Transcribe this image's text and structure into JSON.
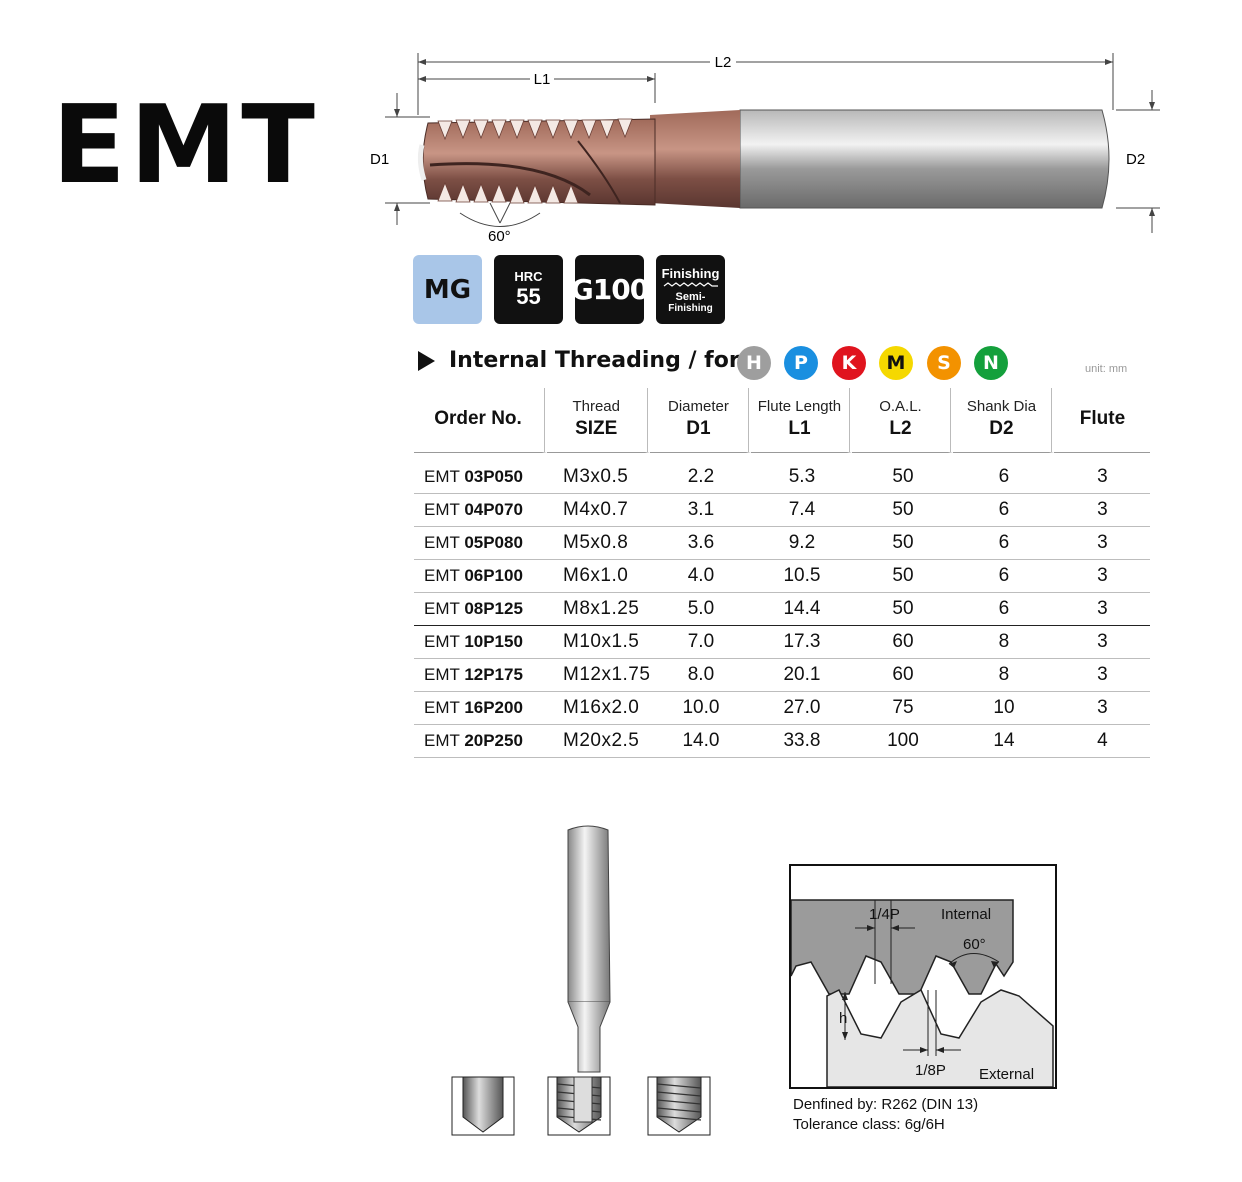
{
  "brand": "EMT",
  "drawing": {
    "l2": "L2",
    "l1": "L1",
    "d1": "D1",
    "d2": "D2",
    "angle": "60°"
  },
  "badges": {
    "mg": "MG",
    "hrc_top": "HRC",
    "hrc_value": "55",
    "grade": "G100",
    "finishing": "Finishing",
    "semi": "Semi-",
    "semi2": "Finishing"
  },
  "section": {
    "title": "Internal Threading / for",
    "unit": "unit: mm",
    "materials": [
      {
        "letter": "H",
        "color": "#9e9e9e"
      },
      {
        "letter": "P",
        "color": "#1a8fe0"
      },
      {
        "letter": "K",
        "color": "#e0141e"
      },
      {
        "letter": "M",
        "color": "#f5d800"
      },
      {
        "letter": "S",
        "color": "#f39200"
      },
      {
        "letter": "N",
        "color": "#14a03c"
      }
    ]
  },
  "table": {
    "headers": {
      "order": "Order No.",
      "thread_top": "Thread",
      "thread_bottom": "SIZE",
      "dia_top": "Diameter",
      "dia_bottom": "D1",
      "flute_len_top": "Flute Length",
      "flute_len_bottom": "L1",
      "oal_top": "O.A.L.",
      "oal_bottom": "L2",
      "shank_top": "Shank Dia",
      "shank_bottom": "D2",
      "flute": "Flute"
    },
    "rows": [
      {
        "prefix": "EMT",
        "code": "03P050",
        "size": "M3x0.5",
        "d1": "2.2",
        "l1": "5.3",
        "l2": "50",
        "d2": "6",
        "flute": "3"
      },
      {
        "prefix": "EMT",
        "code": "04P070",
        "size": "M4x0.7",
        "d1": "3.1",
        "l1": "7.4",
        "l2": "50",
        "d2": "6",
        "flute": "3"
      },
      {
        "prefix": "EMT",
        "code": "05P080",
        "size": "M5x0.8",
        "d1": "3.6",
        "l1": "9.2",
        "l2": "50",
        "d2": "6",
        "flute": "3"
      },
      {
        "prefix": "EMT",
        "code": "06P100",
        "size": "M6x1.0",
        "d1": "4.0",
        "l1": "10.5",
        "l2": "50",
        "d2": "6",
        "flute": "3"
      },
      {
        "prefix": "EMT",
        "code": "08P125",
        "size": "M8x1.25",
        "d1": "5.0",
        "l1": "14.4",
        "l2": "50",
        "d2": "6",
        "flute": "3"
      },
      {
        "prefix": "EMT",
        "code": "10P150",
        "size": "M10x1.5",
        "d1": "7.0",
        "l1": "17.3",
        "l2": "60",
        "d2": "8",
        "flute": "3"
      },
      {
        "prefix": "EMT",
        "code": "12P175",
        "size": "M12x1.75",
        "d1": "8.0",
        "l1": "20.1",
        "l2": "60",
        "d2": "8",
        "flute": "3"
      },
      {
        "prefix": "EMT",
        "code": "16P200",
        "size": "M16x2.0",
        "d1": "10.0",
        "l1": "27.0",
        "l2": "75",
        "d2": "10",
        "flute": "3"
      },
      {
        "prefix": "EMT",
        "code": "20P250",
        "size": "M20x2.5",
        "d1": "14.0",
        "l1": "33.8",
        "l2": "100",
        "d2": "14",
        "flute": "4"
      }
    ]
  },
  "profile": {
    "quarter_p": "1/4P",
    "internal": "Internal",
    "angle": "60°",
    "h": "h",
    "eighth_p": "1/8P",
    "external": "External"
  },
  "notes": {
    "defined": "Denfined by: R262 (DIN 13)",
    "tolerance": "Tolerance class: 6g/6H"
  }
}
